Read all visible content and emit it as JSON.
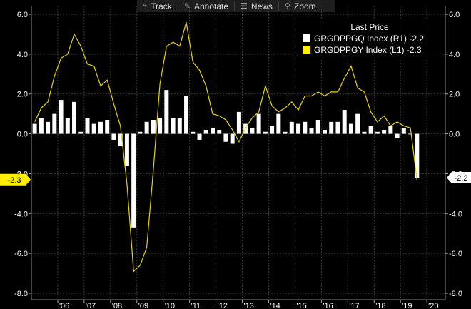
{
  "toolbar": {
    "items": [
      {
        "label": "Track",
        "icon": "crosshair-icon",
        "glyph": "⌖"
      },
      {
        "label": "Annotate",
        "icon": "pencil-icon",
        "glyph": "✎"
      },
      {
        "label": "News",
        "icon": "news-icon",
        "glyph": "☰"
      },
      {
        "label": "Zoom",
        "icon": "magnifier-icon",
        "glyph": "⚲"
      }
    ]
  },
  "chart_data": {
    "type": "bar+line",
    "legend": {
      "title": "Last Price",
      "placement": "top-right",
      "entries": [
        {
          "name": "GRGDPPGQ Index  (R1) -2.2",
          "color": "#ffffff",
          "series": "bars"
        },
        {
          "name": "GRGDPPGY Index  (L1) -2.3",
          "color": "#ffee00",
          "series": "line"
        }
      ]
    },
    "yaxis_left": {
      "min": -8,
      "max": 6,
      "ticks": [
        "6.0",
        "4.0",
        "2.0",
        "0.0",
        "-2.0",
        "-4.0",
        "-6.0",
        "-8.0"
      ],
      "last_tag": "-2.3"
    },
    "yaxis_right": {
      "min": -8,
      "max": 6,
      "ticks": [
        "6.0",
        "4.0",
        "2.0",
        "0.0",
        "-2.0",
        "-4.0",
        "-6.0",
        "-8.0"
      ],
      "last_tag": "-2.2"
    },
    "x_start": 2005.0,
    "x_end": 2020.7,
    "x_ticks": [
      {
        "label": "'06",
        "year": 2006
      },
      {
        "label": "'07",
        "year": 2007
      },
      {
        "label": "'08",
        "year": 2008
      },
      {
        "label": "'09",
        "year": 2009
      },
      {
        "label": "'10",
        "year": 2010
      },
      {
        "label": "'11",
        "year": 2011
      },
      {
        "label": "'12",
        "year": 2012
      },
      {
        "label": "'13",
        "year": 2013
      },
      {
        "label": "'14",
        "year": 2014
      },
      {
        "label": "'15",
        "year": 2015
      },
      {
        "label": "'16",
        "year": 2016
      },
      {
        "label": "'17",
        "year": 2017
      },
      {
        "label": "'18",
        "year": 2018
      },
      {
        "label": "'19",
        "year": 2019
      },
      {
        "label": "'20",
        "year": 2020
      }
    ],
    "grid": true,
    "bars": {
      "name": "GRGDPPGQ Index",
      "color": "#ffffff",
      "x_start": 2005.125,
      "x_step": 0.25,
      "values": [
        0.5,
        0.8,
        0.6,
        1.0,
        1.7,
        0.8,
        1.6,
        0.1,
        0.8,
        0.5,
        0.6,
        0.7,
        -0.3,
        -0.6,
        -1.6,
        -4.7,
        0.1,
        0.6,
        0.7,
        0.8,
        2.2,
        0.8,
        0.8,
        1.9,
        0.1,
        -0.3,
        0.2,
        0.3,
        0.2,
        -0.4,
        -0.5,
        1.1,
        0.5,
        0.3,
        1.0,
        0.1,
        0.4,
        1.0,
        0.1,
        0.6,
        0.5,
        0.6,
        0.3,
        0.7,
        0.2,
        0.6,
        0.6,
        1.2,
        0.5,
        1.0,
        0.1,
        0.4,
        0.1,
        0.2,
        0.4,
        -0.2,
        0.3,
        0.0,
        -2.2
      ]
    },
    "line": {
      "name": "GRGDPPGY Index",
      "color": "#e8d400",
      "x_start": 2005.125,
      "x_step": 0.25,
      "values": [
        0.6,
        1.3,
        1.6,
        2.9,
        3.8,
        4.0,
        5.0,
        4.4,
        3.5,
        3.4,
        2.4,
        2.7,
        1.5,
        0.4,
        -2.5,
        -6.9,
        -6.6,
        -5.7,
        -1.8,
        2.5,
        4.4,
        4.6,
        4.4,
        5.6,
        3.6,
        3.2,
        2.4,
        1.0,
        0.9,
        0.7,
        0.2,
        -0.4,
        0.3,
        0.8,
        1.1,
        2.4,
        1.4,
        1.1,
        1.3,
        1.6,
        1.2,
        1.9,
        1.9,
        2.1,
        1.9,
        2.1,
        2.1,
        2.8,
        3.4,
        2.3,
        2.1,
        1.1,
        0.6,
        0.9,
        0.4,
        0.6,
        0.4,
        0.3,
        -2.3
      ]
    }
  }
}
